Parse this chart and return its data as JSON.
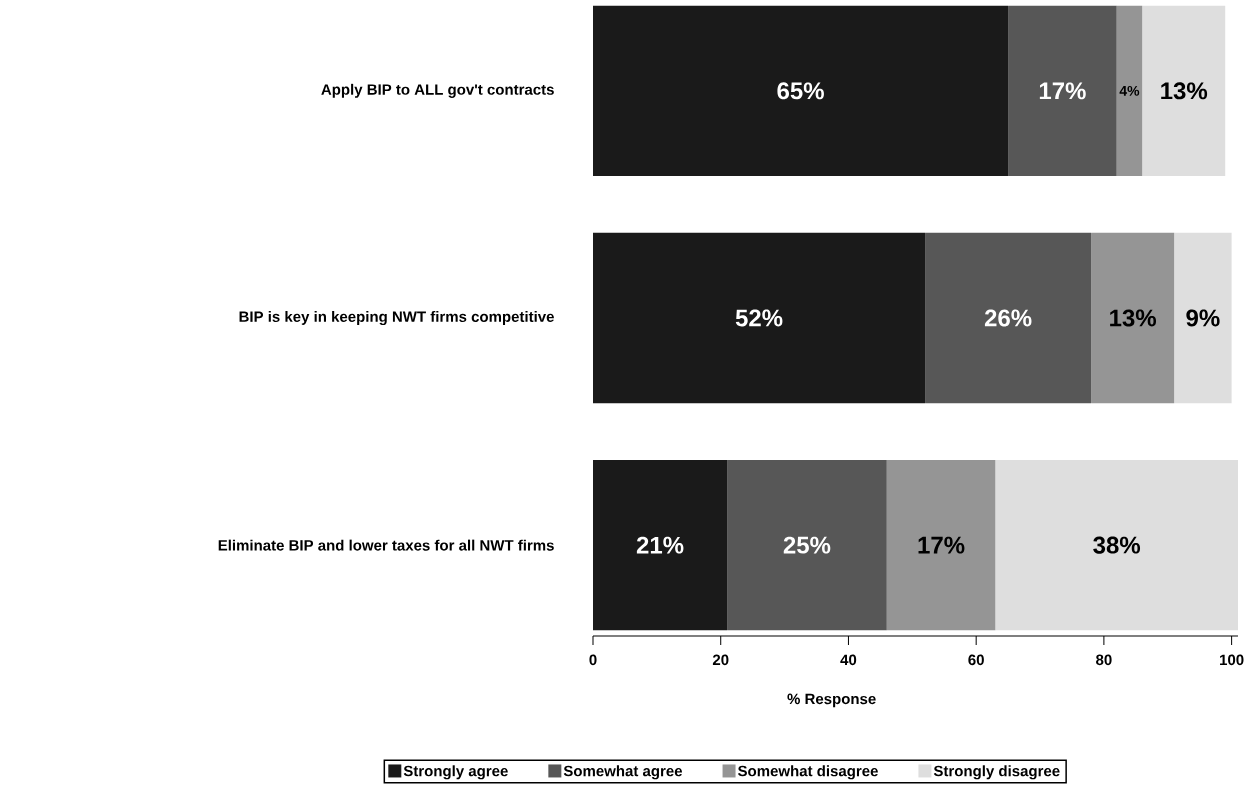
{
  "chart_data": {
    "type": "bar",
    "orientation": "horizontal",
    "stacked": true,
    "categories": [
      "Apply BIP to ALL gov't contracts",
      "BIP is key in keeping NWT firms competitive",
      "Eliminate BIP and lower taxes for all NWT firms"
    ],
    "series": [
      {
        "name": "Strongly agree",
        "color": "#1a1a1a",
        "values": [
          65,
          52,
          21
        ],
        "value_labels": [
          "65%",
          "52%",
          "21%"
        ]
      },
      {
        "name": "Somewhat agree",
        "color": "#575757",
        "values": [
          17,
          26,
          25
        ],
        "value_labels": [
          "17%",
          "26%",
          "25%"
        ]
      },
      {
        "name": "Somewhat disagree",
        "color": "#959595",
        "values": [
          4,
          13,
          17
        ],
        "value_labels": [
          "4%",
          "13%",
          "17%"
        ]
      },
      {
        "name": "Strongly disagree",
        "color": "#dedede",
        "values": [
          13,
          9,
          38
        ],
        "value_labels": [
          "13%",
          "9%",
          "38%"
        ]
      }
    ],
    "xlabel": "% Response",
    "xlim": [
      0,
      101
    ],
    "xticks": [
      0,
      20,
      40,
      60,
      80,
      100
    ],
    "legend": "bottom"
  }
}
